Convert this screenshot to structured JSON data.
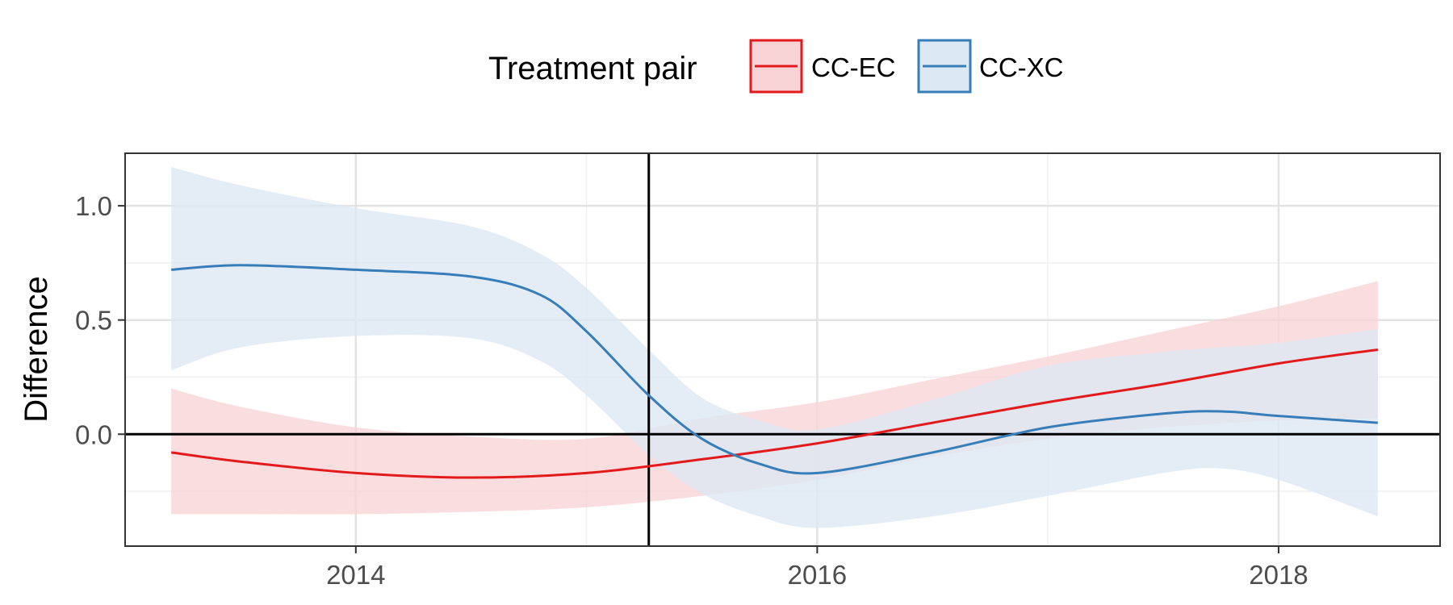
{
  "chart_data": {
    "type": "line",
    "title": "",
    "xlabel": "",
    "ylabel": "Difference",
    "xlim": [
      2013.0,
      2018.7
    ],
    "ylim": [
      -0.49,
      1.23
    ],
    "x_ticks": [
      2014,
      2016,
      2018
    ],
    "x_tick_labels": [
      "2014",
      "2016",
      "2018"
    ],
    "y_ticks": [
      0.0,
      0.5,
      1.0
    ],
    "y_tick_labels": [
      "0.0",
      "0.5",
      "1.0"
    ],
    "grid": true,
    "legend": {
      "title": "Treatment pair",
      "position": "top"
    },
    "reference_lines": {
      "vertical_x": 2015.27,
      "horizontal_y": 0.0
    },
    "series": [
      {
        "name": "CC-EC",
        "color": "#e31a1c",
        "fill": "#f8d3d6",
        "x": [
          2013.2,
          2013.5,
          2014.0,
          2014.5,
          2015.0,
          2015.5,
          2016.0,
          2016.5,
          2017.0,
          2017.5,
          2018.0,
          2018.43
        ],
        "y": [
          -0.08,
          -0.12,
          -0.17,
          -0.19,
          -0.17,
          -0.11,
          -0.04,
          0.05,
          0.14,
          0.22,
          0.31,
          0.37
        ],
        "lower": [
          -0.35,
          -0.35,
          -0.35,
          -0.34,
          -0.32,
          -0.27,
          -0.2,
          -0.1,
          -0.02,
          0.03,
          0.06,
          0.07
        ],
        "upper": [
          0.2,
          0.12,
          0.03,
          -0.01,
          -0.02,
          0.07,
          0.14,
          0.24,
          0.34,
          0.45,
          0.56,
          0.67
        ]
      },
      {
        "name": "CC-XC",
        "color": "#377eb8",
        "fill": "#dce8f3",
        "x": [
          2013.2,
          2013.5,
          2014.0,
          2014.5,
          2014.8,
          2015.0,
          2015.27,
          2015.5,
          2015.75,
          2016.0,
          2016.5,
          2017.0,
          2017.5,
          2017.75,
          2018.0,
          2018.43
        ],
        "y": [
          0.72,
          0.74,
          0.72,
          0.69,
          0.61,
          0.45,
          0.17,
          -0.02,
          -0.13,
          -0.17,
          -0.08,
          0.03,
          0.09,
          0.1,
          0.08,
          0.05
        ],
        "lower": [
          0.28,
          0.38,
          0.43,
          0.42,
          0.32,
          0.17,
          -0.09,
          -0.26,
          -0.36,
          -0.41,
          -0.36,
          -0.27,
          -0.17,
          -0.15,
          -0.2,
          -0.36
        ],
        "upper": [
          1.17,
          1.09,
          0.99,
          0.91,
          0.79,
          0.64,
          0.37,
          0.16,
          0.06,
          0.02,
          0.15,
          0.3,
          0.36,
          0.38,
          0.4,
          0.46
        ]
      }
    ]
  }
}
